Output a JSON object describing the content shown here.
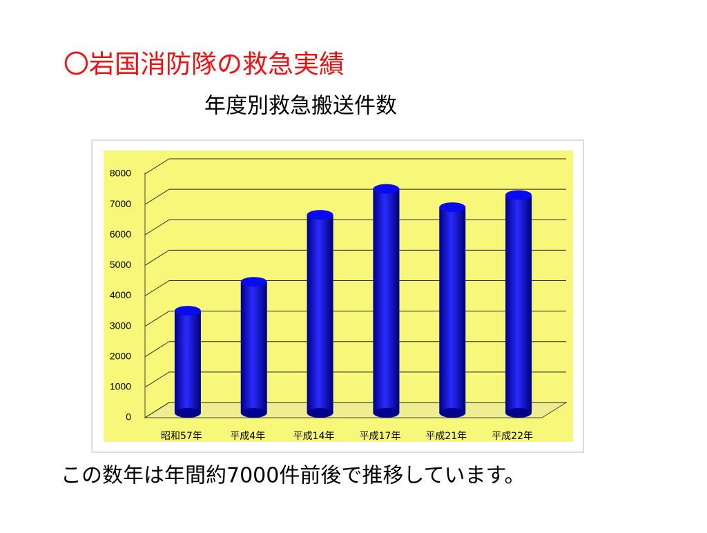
{
  "slide": {
    "title": "〇岩国消防隊の救急実績",
    "subtitle": "年度別救急搬送件数",
    "note": "この数年は年間約7000件前後で推移しています。"
  },
  "chart_data": {
    "type": "bar",
    "categories": [
      "昭和57年",
      "平成4年",
      "平成14年",
      "平成17年",
      "平成21年",
      "平成22年"
    ],
    "values": [
      3600,
      4550,
      6750,
      7600,
      7000,
      7400
    ],
    "color": "#0a0aee",
    "ylim": [
      0,
      8000
    ],
    "yticks": [
      0,
      1000,
      2000,
      3000,
      4000,
      5000,
      6000,
      7000,
      8000
    ],
    "grid": true
  }
}
